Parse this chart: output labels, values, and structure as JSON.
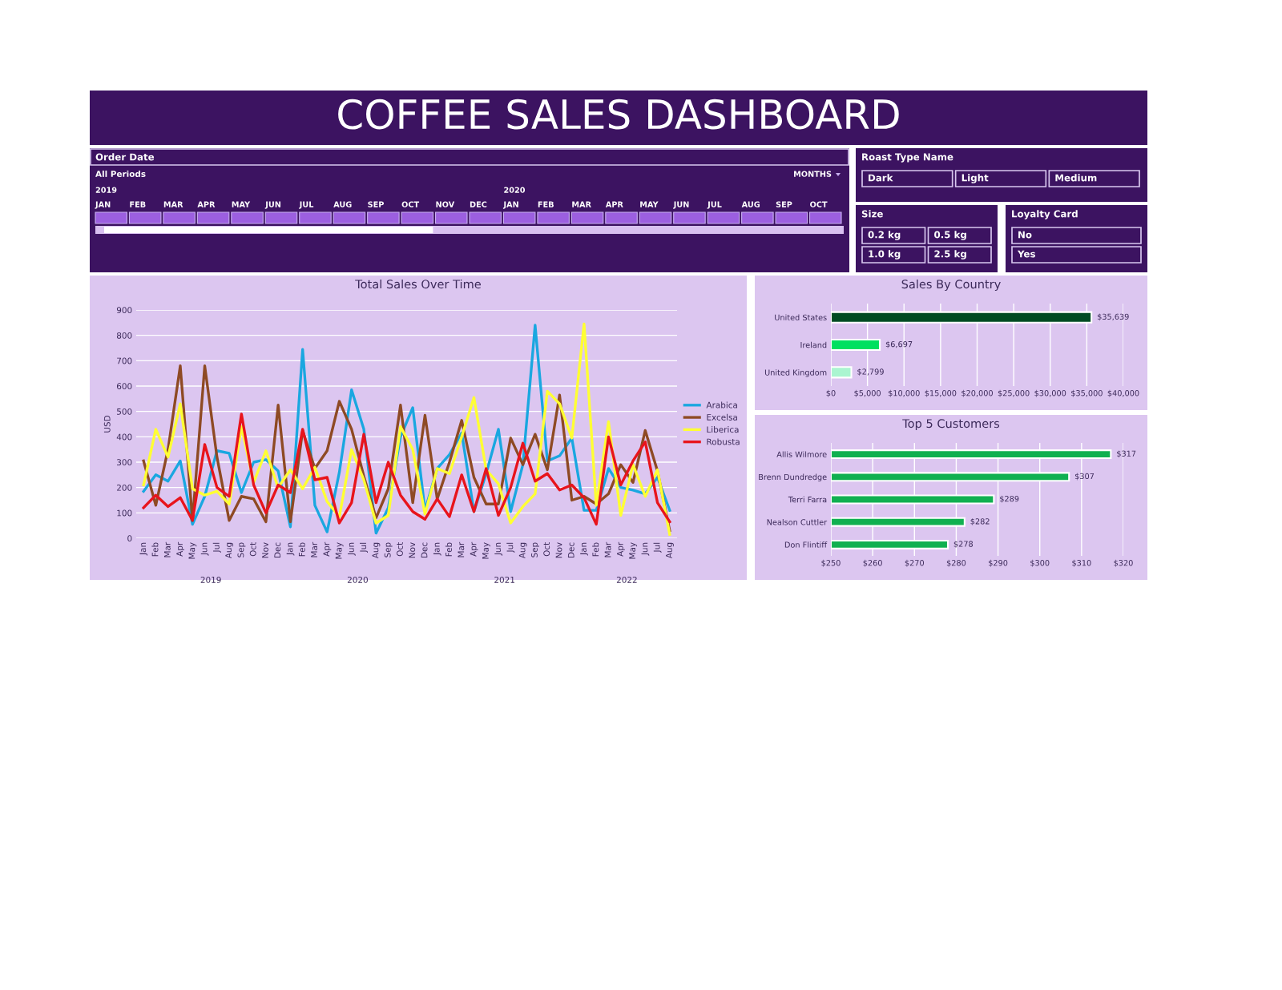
{
  "chart_data": [
    {
      "type": "other",
      "title": "COFFEE SALES DASHBOARD"
    },
    {
      "type": "other",
      "title": "Order Date",
      "subtitle": "All Periods",
      "annotations": [
        "MONTHS",
        "2019",
        "2020"
      ],
      "categories": [
        "JAN",
        "FEB",
        "MAR",
        "APR",
        "MAY",
        "JUN",
        "JUL",
        "AUG",
        "SEP",
        "OCT",
        "NOV",
        "DEC",
        "JAN",
        "FEB",
        "MAR",
        "APR",
        "MAY",
        "JUN",
        "JUL",
        "AUG",
        "SEP",
        "OCT"
      ]
    },
    {
      "type": "other",
      "title": "Roast Type Name",
      "categories": [
        "Dark",
        "Light",
        "Medium"
      ]
    },
    {
      "type": "other",
      "title": "Size",
      "categories": [
        "0.2 kg",
        "0.5 kg",
        "1.0 kg",
        "2.5 kg"
      ]
    },
    {
      "type": "other",
      "title": "Loyalty Card",
      "categories": [
        "No",
        "Yes"
      ]
    },
    {
      "type": "line",
      "title": "Total Sales Over Time",
      "ylabel": "USD",
      "annotations": [
        "2019",
        "2020",
        "2021",
        "2022"
      ],
      "categories": [
        "Jan",
        "Feb",
        "Mar",
        "Apr",
        "May",
        "Jun",
        "Jul",
        "Aug",
        "Sep",
        "Oct",
        "Nov",
        "Dec",
        "Jan",
        "Feb",
        "Mar",
        "Apr",
        "May",
        "Jun",
        "Jul",
        "Aug",
        "Sep",
        "Oct",
        "Nov",
        "Dec",
        "Jan",
        "Feb",
        "Mar",
        "Apr",
        "May",
        "Jun",
        "Jul",
        "Aug",
        "Sep",
        "Oct",
        "Nov",
        "Dec",
        "Jan",
        "Feb",
        "Mar",
        "Apr",
        "May",
        "Jun",
        "Jul",
        "Aug"
      ],
      "ylim": [
        0,
        900
      ],
      "yticks": [
        0,
        100,
        200,
        300,
        400,
        500,
        600,
        700,
        800,
        900
      ],
      "grid": "y",
      "legend": "right",
      "series": [
        {
          "name": "Arabica",
          "color": "#1aa7e0",
          "values": [
            185,
            250,
            225,
            305,
            55,
            165,
            345,
            335,
            180,
            300,
            310,
            265,
            45,
            745,
            130,
            25,
            260,
            585,
            430,
            20,
            120,
            400,
            515,
            110,
            275,
            330,
            415,
            105,
            255,
            430,
            105,
            290,
            840,
            305,
            325,
            395,
            110,
            110,
            275,
            200,
            190,
            175,
            240,
            110
          ]
        },
        {
          "name": "Excelsa",
          "color": "#8e4a24",
          "values": [
            305,
            130,
            350,
            680,
            70,
            680,
            320,
            70,
            165,
            155,
            65,
            525,
            65,
            425,
            275,
            345,
            540,
            430,
            245,
            80,
            195,
            525,
            140,
            485,
            155,
            300,
            465,
            240,
            135,
            135,
            395,
            290,
            410,
            270,
            565,
            150,
            165,
            135,
            175,
            290,
            220,
            425,
            265,
            30
          ]
        },
        {
          "name": "Liberica",
          "color": "#ffff33",
          "values": [
            210,
            430,
            320,
            530,
            195,
            170,
            185,
            135,
            440,
            220,
            345,
            200,
            270,
            195,
            280,
            145,
            85,
            350,
            230,
            60,
            90,
            440,
            350,
            95,
            275,
            255,
            400,
            555,
            270,
            215,
            60,
            125,
            175,
            580,
            530,
            395,
            845,
            130,
            460,
            90,
            290,
            165,
            270,
            15
          ]
        },
        {
          "name": "Robusta",
          "color": "#e8141c",
          "values": [
            120,
            170,
            125,
            160,
            70,
            370,
            200,
            165,
            490,
            210,
            100,
            210,
            180,
            430,
            230,
            240,
            60,
            140,
            410,
            140,
            300,
            170,
            105,
            75,
            155,
            85,
            250,
            105,
            275,
            90,
            200,
            375,
            225,
            255,
            190,
            210,
            160,
            55,
            400,
            210,
            305,
            380,
            140,
            65
          ]
        }
      ]
    },
    {
      "type": "bar",
      "orientation": "horizontal",
      "title": "Sales By Country",
      "categories": [
        "United States",
        "Ireland",
        "United Kingdom"
      ],
      "values": [
        35639,
        6697,
        2799
      ],
      "value_labels": [
        "$35,639",
        "$6,697",
        "$2,799"
      ],
      "colors": [
        "#004b23",
        "#00e060",
        "#aaf5d0"
      ],
      "xlim": [
        0,
        40000
      ],
      "xticks": [
        {
          "value": 0,
          "label": "$0"
        },
        {
          "value": 5000,
          "label": "$5,000"
        },
        {
          "value": 10000,
          "label": "$10,000"
        },
        {
          "value": 15000,
          "label": "$15,000"
        },
        {
          "value": 20000,
          "label": "$20,000"
        },
        {
          "value": 25000,
          "label": "$25,000"
        },
        {
          "value": 30000,
          "label": "$30,000"
        },
        {
          "value": 35000,
          "label": "$35,000"
        },
        {
          "value": 40000,
          "label": "$40,000"
        }
      ],
      "grid": "x"
    },
    {
      "type": "bar",
      "orientation": "horizontal",
      "title": "Top 5 Customers",
      "categories": [
        "Allis Wilmore",
        "Brenn Dundredge",
        "Terri Farra",
        "Nealson Cuttler",
        "Don Flintiff"
      ],
      "values": [
        317,
        307,
        289,
        282,
        278
      ],
      "value_labels": [
        "$317",
        "$307",
        "$289",
        "$282",
        "$278"
      ],
      "colors": [
        "#10b050",
        "#10b050",
        "#10b050",
        "#10b050",
        "#10b050"
      ],
      "xlim": [
        250,
        320
      ],
      "xticks": [
        {
          "value": 250,
          "label": "$250"
        },
        {
          "value": 260,
          "label": "$260"
        },
        {
          "value": 270,
          "label": "$270"
        },
        {
          "value": 280,
          "label": "$280"
        },
        {
          "value": 290,
          "label": "$290"
        },
        {
          "value": 300,
          "label": "$300"
        },
        {
          "value": 310,
          "label": "$310"
        },
        {
          "value": 320,
          "label": "$320"
        }
      ],
      "grid": "x"
    }
  ]
}
